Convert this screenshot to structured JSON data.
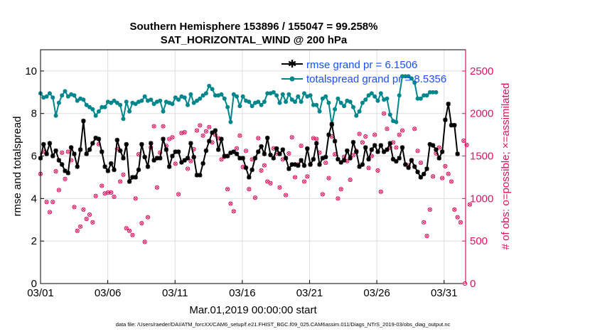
{
  "chart_data": {
    "type": "line",
    "title_line1": "Southern Hemisphere 153896 / 155047 = 99.258%",
    "title_line2": "SAT_HORIZONTAL_WIND @ 200 hPa",
    "xlabel": "Mar.01,2019 00:00:00 start",
    "ylabel_left": "rmse and totalspread",
    "ylabel_right": "# of obs: o=possible; ×=assimilated",
    "xlim": [
      0,
      31.6
    ],
    "ylim_left": [
      0,
      11
    ],
    "ylim_right": [
      0,
      2750
    ],
    "x_ticks": [
      0,
      5,
      10,
      15,
      20,
      25,
      30
    ],
    "x_tick_labels": [
      "03/01",
      "03/06",
      "03/11",
      "03/16",
      "03/21",
      "03/26",
      "03/31"
    ],
    "y_ticks_left": [
      0,
      2,
      4,
      6,
      8,
      10
    ],
    "y_ticks_right": [
      0,
      500,
      1000,
      1500,
      2000,
      2500
    ],
    "grid": true,
    "legend_placement": "top-right",
    "colors": {
      "rmse": "#000000",
      "spread": "#00868b",
      "obs": "#e0115f",
      "right_axis": "#e0115f",
      "legend_text": "#1a4fff"
    },
    "footnote": "data file: /Users/raeder/DAI/ATM_forcXX/CAM6_setup/f.e21.FHIST_BGC.f09_025.CAM6assim.011/Diags_NTrS_2019-03/obs_diag_output.nc",
    "series": [
      {
        "name": "rmse grand pr = 6.1506",
        "marker": "star",
        "values": [
          5.9,
          6.55,
          6.1,
          6.6,
          6.0,
          6.25,
          5.8,
          5.6,
          5.3,
          5.2,
          6.4,
          6.1,
          5.5,
          6.3,
          7.65,
          6.1,
          6.3,
          6.6,
          6.85,
          6.8,
          6.2,
          5.5,
          5.3,
          5.65,
          5.35,
          6.75,
          6.25,
          5.9,
          6.55,
          4.8,
          5.0,
          5.0,
          5.35,
          6.55,
          5.95,
          5.5,
          6.6,
          5.8,
          5.9,
          5.9,
          6.8,
          6.3,
          5.5,
          6.0,
          6.2,
          6.2,
          5.7,
          5.8,
          5.9,
          6.6,
          5.95,
          5.1,
          5.1,
          5.65,
          6.25,
          6.7,
          7.1,
          7.2,
          6.3,
          6.8,
          6.0,
          6.0,
          6.15,
          6.2,
          6.1,
          5.9,
          5.9,
          5.45,
          5.0,
          5.35,
          5.9,
          6.2,
          6.45,
          6.1,
          6.85,
          6.05,
          5.9,
          6.35,
          6.1,
          6.3,
          5.9,
          5.4,
          5.6,
          5.6,
          5.55,
          5.8,
          5.55,
          6.35,
          5.6,
          5.85,
          6.6,
          5.6,
          5.9,
          5.95,
          7.0,
          7.5,
          6.7,
          5.85,
          5.7,
          5.8,
          6.25,
          5.9,
          6.65,
          6.2,
          5.5,
          5.6,
          6.4,
          5.85,
          6.3,
          6.5,
          6.2,
          6.5,
          6.2,
          6.3,
          6.6,
          5.85,
          5.75,
          5.9,
          6.4,
          5.6,
          5.45,
          5.8,
          5.5,
          5.25,
          5.0,
          5.15,
          5.4,
          6.55,
          6.5,
          6.3,
          5.9,
          6.2,
          7.7,
          8.45,
          7.45,
          7.45,
          6.1
        ]
      },
      {
        "name": "totalspread grand pr = 8.5356",
        "marker": "dot",
        "values": [
          8.95,
          8.75,
          8.8,
          8.95,
          8.75,
          7.9,
          8.5,
          8.85,
          9.05,
          8.8,
          8.9,
          8.85,
          8.6,
          8.7,
          8.65,
          8.4,
          8.3,
          8.2,
          7.9,
          8.1,
          8.3,
          8.3,
          8.55,
          8.5,
          8.6,
          8.5,
          8.4,
          7.75,
          8.55,
          8.1,
          8.5,
          8.45,
          8.55,
          8.6,
          8.8,
          8.6,
          8.65,
          8.45,
          8.55,
          8.6,
          8.1,
          8.55,
          8.5,
          8.45,
          8.75,
          8.65,
          8.8,
          8.75,
          8.4,
          8.9,
          8.5,
          8.6,
          8.7,
          8.85,
          8.95,
          9.3,
          9.15,
          8.85,
          8.85,
          8.9,
          8.7,
          8.3,
          7.6,
          8.9,
          8.8,
          8.35,
          8.8,
          8.6,
          8.55,
          8.35,
          8.5,
          8.55,
          8.4,
          8.55,
          8.95,
          8.95,
          9.0,
          8.85,
          8.5,
          8.9,
          8.55,
          8.9,
          8.65,
          8.55,
          8.8,
          8.55,
          8.95,
          8.8,
          8.85,
          8.4,
          8.4,
          8.1,
          8.7,
          8.8,
          8.5,
          7.45,
          8.2,
          8.7,
          8.5,
          8.35,
          8.6,
          8.55,
          8.3,
          7.9,
          8.1,
          8.5,
          8.65,
          8.85,
          8.95,
          8.8,
          8.6,
          8.95,
          8.65,
          8.7,
          7.95,
          7.65,
          7.6,
          8.85,
          9.75,
          9.75,
          9.75,
          9.65,
          9.45,
          8.7,
          8.7,
          8.85,
          8.85,
          9.0,
          9.0,
          9.0
        ]
      },
      {
        "name": "obs possible",
        "marker": "circle",
        "axis": "right",
        "values": [
          1290,
          1550,
          960,
          840,
          960,
          1320,
          1100,
          1540,
          1230,
          1550,
          1450,
          900,
          620,
          670,
          870,
          760,
          810,
          720,
          1030,
          1640,
          1150,
          1060,
          1070,
          1070,
          1020,
          1580,
          1200,
          1280,
          650,
          620,
          570,
          1000,
          1520,
          710,
          490,
          780,
          1600,
          1850,
          1130,
          1540,
          1850,
          1620,
          1700,
          1720,
          1410,
          1050,
          1770,
          1780,
          1350,
          1440,
          1580,
          1800,
          1860,
          1740,
          1790,
          1840,
          1660,
          1750,
          1710,
          1460,
          1490,
          1110,
          940,
          850,
          1590,
          1740,
          1370,
          1560,
          1110,
          1460,
          1010,
          1710,
          1330,
          1390,
          1200,
          1180,
          1590,
          1530,
          1130,
          1460,
          1040,
          1530,
          1720,
          1250,
          1400,
          1620,
          1200,
          1260,
          1400,
          1710,
          1700,
          1540,
          1050,
          1420,
          1240,
          1730,
          1520,
          1000,
          1110,
          1490,
          1440,
          1220,
          1510,
          1560,
          1760,
          1660,
          1730,
          1360,
          1500,
          1750,
          1330,
          1080,
          2000,
          1820,
          1600,
          1660,
          1600,
          1750,
          1800,
          1400,
          1390,
          1450,
          1820,
          1560,
          1420,
          720,
          560,
          870,
          1260,
          1530,
          1600,
          1240,
          1380,
          1290,
          1200,
          870,
          780,
          720,
          1680,
          1630,
          930
        ]
      }
    ]
  }
}
